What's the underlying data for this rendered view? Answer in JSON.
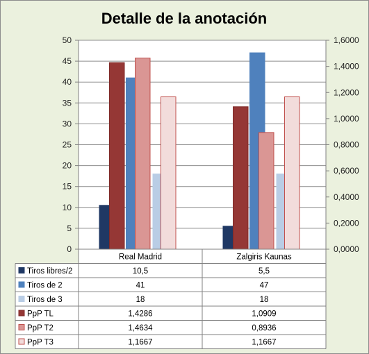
{
  "chart_data": {
    "type": "bar",
    "title": "Detalle de la anotación",
    "categories": [
      "Real Madrid",
      "Zalgiris Kaunas"
    ],
    "series": [
      {
        "name": "Tiros libres/2",
        "axis": "left",
        "values": [
          10.5,
          5.5
        ],
        "labels": [
          "10,5",
          "5,5"
        ],
        "color": "#1f3864",
        "border": "#1f3864"
      },
      {
        "name": "Tiros de 2",
        "axis": "left",
        "values": [
          41,
          47
        ],
        "labels": [
          "41",
          "47"
        ],
        "color": "#4f81bd",
        "border": "#4f81bd"
      },
      {
        "name": "Tiros de 3",
        "axis": "left",
        "values": [
          18,
          18
        ],
        "labels": [
          "18",
          "18"
        ],
        "color": "#b9cde5",
        "border": "#b9cde5"
      },
      {
        "name": "PpP TL",
        "axis": "right",
        "values": [
          1.4286,
          1.0909
        ],
        "labels": [
          "1,4286",
          "1,0909"
        ],
        "color": "#953735",
        "border": "#7f2a28"
      },
      {
        "name": "PpP T2",
        "axis": "right",
        "values": [
          1.4634,
          0.8936
        ],
        "labels": [
          "1,4634",
          "0,8936"
        ],
        "color": "#da9694",
        "border": "#c0504d"
      },
      {
        "name": "PpP T3",
        "axis": "right",
        "values": [
          1.1667,
          1.1667
        ],
        "labels": [
          "1,1667",
          "1,1667"
        ],
        "color": "#f2dcdb",
        "border": "#c0504d"
      }
    ],
    "ylim_left": [
      0,
      50
    ],
    "yticks_left": [
      "0",
      "5",
      "10",
      "15",
      "20",
      "25",
      "30",
      "35",
      "40",
      "45",
      "50"
    ],
    "ylim_right": [
      0,
      1.6
    ],
    "yticks_right": [
      "0,0000",
      "0,2000",
      "0,4000",
      "0,6000",
      "0,8000",
      "1,0000",
      "1,2000",
      "1,4000",
      "1,6000"
    ],
    "grid": true,
    "legend": "data-table"
  }
}
